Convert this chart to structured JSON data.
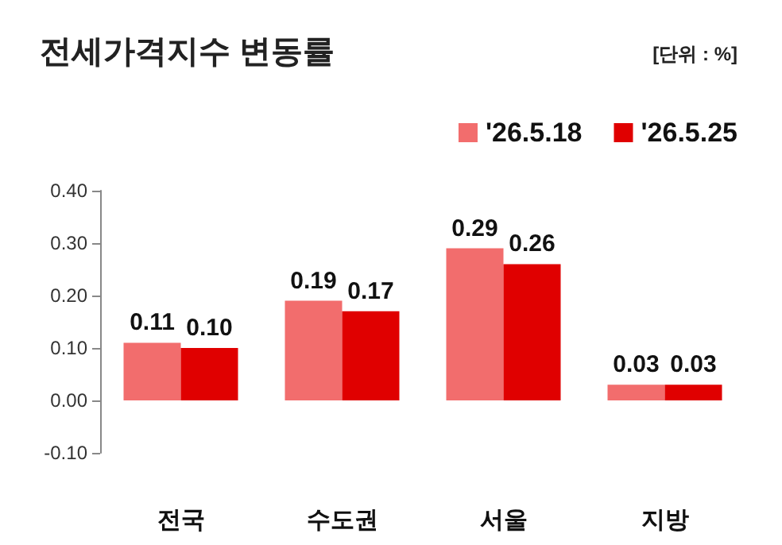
{
  "chart_data": {
    "type": "bar",
    "title": "전세가격지수 변동률",
    "annotations": [
      "[단위 : %]"
    ],
    "categories": [
      "전국",
      "수도권",
      "서울",
      "지방"
    ],
    "series": [
      {
        "name": "'26.5.18",
        "color": "#f26d6d",
        "values": [
          0.11,
          0.19,
          0.29,
          0.03
        ],
        "value_labels": [
          "0.11",
          "0.19",
          "0.29",
          "0.03"
        ]
      },
      {
        "name": "'26.5.25",
        "color": "#e00000",
        "values": [
          0.1,
          0.17,
          0.26,
          0.03
        ],
        "value_labels": [
          "0.10",
          "0.17",
          "0.26",
          "0.03"
        ]
      }
    ],
    "ylim": [
      -0.1,
      0.4
    ],
    "yticks": [
      {
        "value": -0.1,
        "label": "-0.10"
      },
      {
        "value": 0,
        "label": "0.00"
      },
      {
        "value": 0.1,
        "label": "0.10"
      },
      {
        "value": 0.2,
        "label": "0.20"
      },
      {
        "value": 0.3,
        "label": "0.30"
      },
      {
        "value": 0.4,
        "label": "0.40"
      }
    ],
    "grid": false,
    "legend": "top right"
  }
}
